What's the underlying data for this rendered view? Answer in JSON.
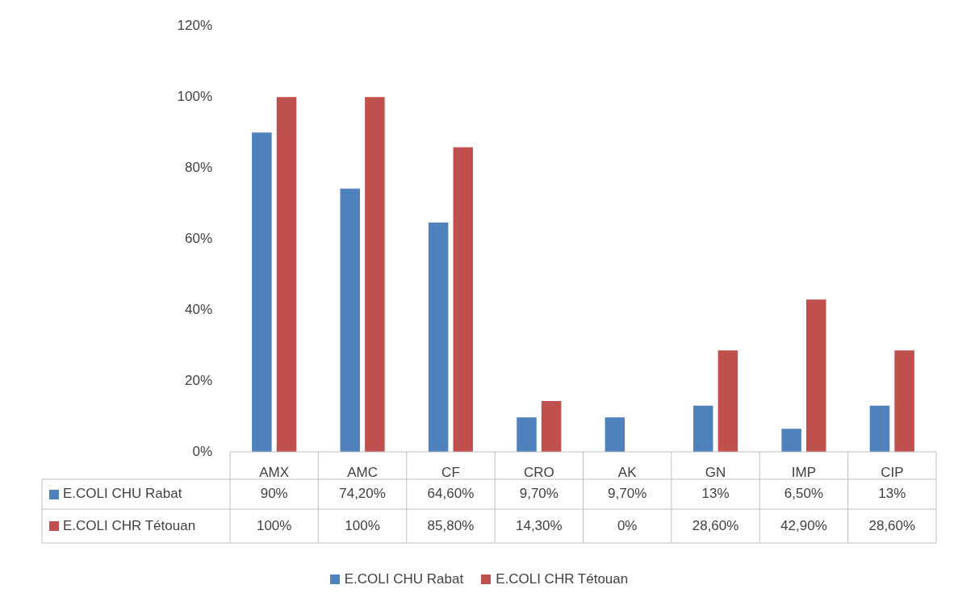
{
  "chart_data": {
    "type": "bar",
    "categories": [
      "AMX",
      "AMC",
      "CF",
      "CRO",
      "AK",
      "GN",
      "IMP",
      "CIP"
    ],
    "series": [
      {
        "name": "E.COLI CHU Rabat",
        "color": "#4f81bd",
        "values": [
          90,
          74.2,
          64.6,
          9.7,
          9.7,
          13,
          6.5,
          13
        ],
        "value_labels": [
          "90%",
          "74,20%",
          "64,60%",
          "9,70%",
          "9,70%",
          "13%",
          "6,50%",
          "13%"
        ]
      },
      {
        "name": "E.COLI CHR Tétouan",
        "color": "#c0504d",
        "values": [
          100,
          100,
          85.8,
          14.3,
          0,
          28.6,
          42.9,
          28.6
        ],
        "value_labels": [
          "100%",
          "100%",
          "85,80%",
          "14,30%",
          "0%",
          "28,60%",
          "42,90%",
          "28,60%"
        ]
      }
    ],
    "ylim": [
      0,
      120
    ],
    "yticks": [
      {
        "value": 0,
        "label": "0%"
      },
      {
        "value": 20,
        "label": "20%"
      },
      {
        "value": 40,
        "label": "40%"
      },
      {
        "value": 60,
        "label": "60%"
      },
      {
        "value": 80,
        "label": "80%"
      },
      {
        "value": 100,
        "label": "100%"
      },
      {
        "value": 120,
        "label": "120%"
      }
    ],
    "grid": false,
    "legend": "bottom"
  }
}
